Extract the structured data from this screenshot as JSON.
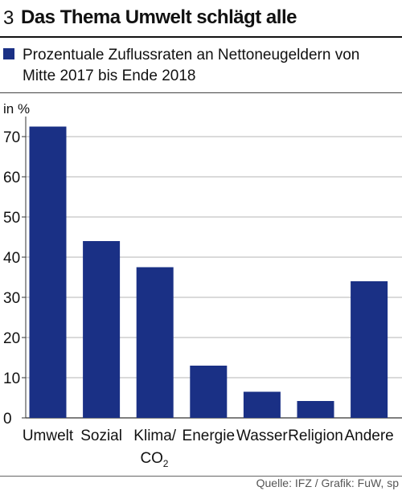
{
  "header": {
    "figure_number": "3",
    "title": "Das Thema Umwelt schlägt alle"
  },
  "legend": {
    "text": "Prozentuale Zuflussraten an Nettoneugeldern von Mitte 2017 bis Ende 2018",
    "color": "#1a3085"
  },
  "source": "Quelle: IFZ / Grafik: FuW, sp",
  "chart_data": {
    "type": "bar",
    "categories": [
      "Umwelt",
      "Sozial",
      "Klima/CO2",
      "Energie",
      "Wasser",
      "Religion",
      "Andere"
    ],
    "category_labels": [
      [
        "Umwelt"
      ],
      [
        "Sozial"
      ],
      [
        "Klima/",
        "CO",
        "2"
      ],
      [
        "Energie"
      ],
      [
        "Wasser"
      ],
      [
        "Religion"
      ],
      [
        "Andere"
      ]
    ],
    "values": [
      72.5,
      44,
      37.5,
      13,
      6.5,
      4.2,
      34
    ],
    "ylabel": "in %",
    "ylim": [
      0,
      75
    ],
    "yticks": [
      0,
      10,
      20,
      30,
      40,
      50,
      60,
      70
    ],
    "ytick_labels": [
      "0",
      "10",
      "20",
      "30",
      "40",
      "50",
      "60",
      "70"
    ],
    "grid": true,
    "bar_color": "#1a3085"
  }
}
